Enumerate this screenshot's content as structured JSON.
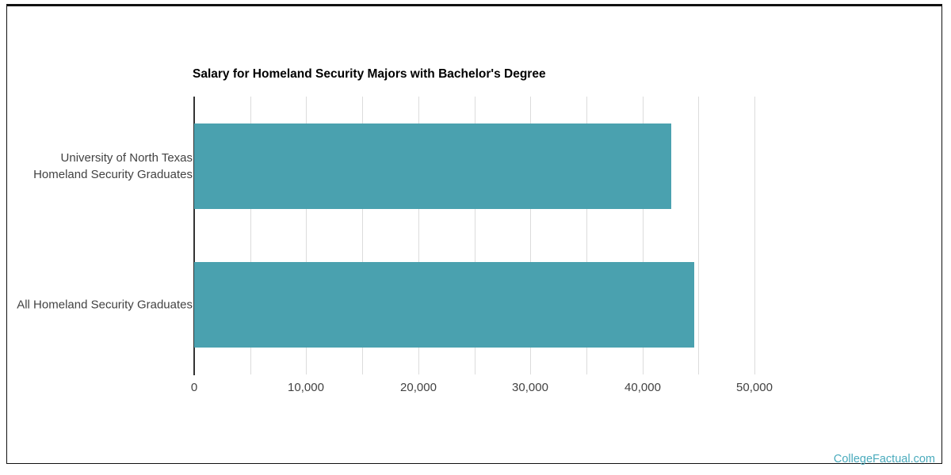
{
  "page": {
    "watermark_label": "CollegeFactual.com",
    "colors": {
      "bar": "#4aa1af",
      "gridline": "#dcdcdc",
      "axis_line": "#333333",
      "label_text": "#424242",
      "title_text": "#000000",
      "watermark_text": "#4aabbd",
      "frame_border": "#111111"
    }
  },
  "chart_data": {
    "type": "bar",
    "orientation": "horizontal",
    "title": "Salary for Homeland Security Majors with Bachelor's Degree",
    "categories": [
      "University of North Texas Homeland Security Graduates",
      "All Homeland Security Graduates"
    ],
    "category_display_lines": [
      [
        "University of North Texas",
        "Homeland Security Graduates"
      ],
      [
        "All Homeland Security Graduates"
      ]
    ],
    "values": [
      42600,
      44600
    ],
    "bar_color": "#4aa1af",
    "xlabel": "",
    "ylabel": "",
    "xlim": [
      0,
      57500
    ],
    "xticks": [
      0,
      10000,
      20000,
      30000,
      40000,
      50000
    ],
    "xtick_labels": [
      "0",
      "10,000",
      "20,000",
      "30,000",
      "40,000",
      "50,000"
    ],
    "gridline_interval": 5000,
    "gridline_max": 50000,
    "grid": true,
    "legend": false
  }
}
